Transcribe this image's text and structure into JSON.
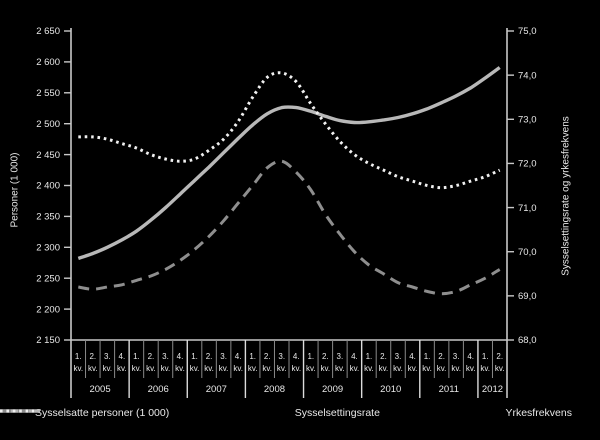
{
  "chart_data": {
    "type": "line",
    "title": "",
    "left_axis": {
      "title": "Personer (1 000)",
      "min": 2150,
      "max": 2650,
      "step": 50,
      "tick_labels": [
        "2 650",
        "2 600",
        "2 550",
        "2 500",
        "2 450",
        "2 400",
        "2 350",
        "2 300",
        "2 250",
        "2 200",
        "2 150"
      ]
    },
    "right_axis": {
      "title": "Sysselsettingsrate og yrkesfrekvens",
      "min": 68.0,
      "max": 75.0,
      "step": 1.0,
      "tick_labels": [
        "75,0",
        "74,0",
        "73,0",
        "72,0",
        "71,0",
        "70,0",
        "69,0",
        "68,0"
      ]
    },
    "x_axis": {
      "quarter_labels": [
        "1.",
        "2.",
        "3.",
        "4."
      ],
      "quarter_suffix": "kv.",
      "years": [
        {
          "label": "2005",
          "quarters": 4
        },
        {
          "label": "2006",
          "quarters": 4
        },
        {
          "label": "2007",
          "quarters": 4
        },
        {
          "label": "2008",
          "quarters": 4
        },
        {
          "label": "2009",
          "quarters": 4
        },
        {
          "label": "2010",
          "quarters": 4
        },
        {
          "label": "2011",
          "quarters": 4
        },
        {
          "label": "2012",
          "quarters": 2
        }
      ]
    },
    "legend_position": "bottom",
    "grid": false,
    "background_color": "#000000",
    "text_color": "#e8e8e8",
    "axis_color": "#c8c8c8",
    "series": [
      {
        "name": "Sysselsatte personer (1 000)",
        "axis": "left",
        "line_style": "solid",
        "color": "#b8b8b8",
        "values": [
          2282,
          2290,
          2300,
          2312,
          2326,
          2344,
          2364,
          2386,
          2408,
          2430,
          2453,
          2476,
          2498,
          2516,
          2526,
          2526,
          2520,
          2512,
          2505,
          2502,
          2503,
          2506,
          2510,
          2516,
          2524,
          2534,
          2545,
          2558,
          2574,
          2591
        ]
      },
      {
        "name": "Sysselsettingsrate",
        "axis": "right",
        "line_style": "dashed",
        "color": "#8e8e8e",
        "values": [
          69.2,
          69.15,
          69.2,
          69.25,
          69.35,
          69.45,
          69.6,
          69.8,
          70.05,
          70.35,
          70.7,
          71.1,
          71.5,
          71.9,
          72.05,
          71.8,
          71.4,
          70.85,
          70.4,
          70.0,
          69.7,
          69.5,
          69.3,
          69.2,
          69.1,
          69.05,
          69.1,
          69.25,
          69.4,
          69.6
        ]
      },
      {
        "name": "Yrkesfrekvens",
        "axis": "right",
        "line_style": "dotted",
        "color": "#f0f0f0",
        "values": [
          72.6,
          72.6,
          72.55,
          72.45,
          72.35,
          72.2,
          72.1,
          72.05,
          72.1,
          72.3,
          72.55,
          72.95,
          73.5,
          73.95,
          74.05,
          73.85,
          73.35,
          72.9,
          72.5,
          72.2,
          72.0,
          71.85,
          71.7,
          71.6,
          71.5,
          71.45,
          71.5,
          71.6,
          71.7,
          71.85
        ]
      }
    ]
  }
}
